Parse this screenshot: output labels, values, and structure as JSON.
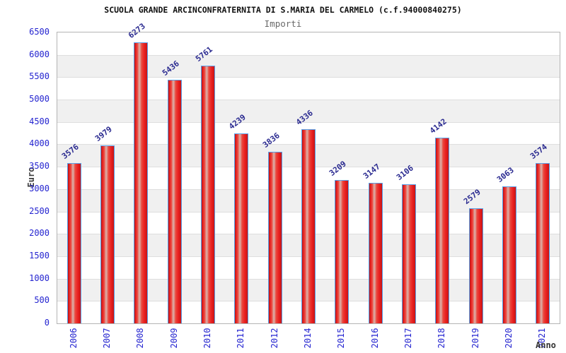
{
  "chart": {
    "title": "SCUOLA GRANDE ARCINCONFRATERNITA DI S.MARIA DEL CARMELO (c.f.94000840275)",
    "subtitle": "Importi",
    "ylabel": "Euro",
    "xlabel": "Anno"
  },
  "chart_data": {
    "type": "bar",
    "title": "SCUOLA GRANDE ARCINCONFRATERNITA DI S.MARIA DEL CARMELO (c.f.94000840275)",
    "subtitle": "Importi",
    "xlabel": "Anno",
    "ylabel": "Euro",
    "categories": [
      "2006",
      "2007",
      "2008",
      "2009",
      "2010",
      "2011",
      "2012",
      "2014",
      "2015",
      "2016",
      "2017",
      "2018",
      "2019",
      "2020",
      "2021"
    ],
    "values": [
      3576,
      3979,
      6273,
      5436,
      5761,
      4239,
      3836,
      4336,
      3209,
      3147,
      3106,
      4142,
      2579,
      3063,
      3574
    ],
    "ylim": [
      0,
      6500
    ],
    "ytick_step": 500,
    "grid": true,
    "legend": false,
    "colors": {
      "bar_fill": "#ea1f1f",
      "bar_highlight": "#dda49c",
      "bar_border": "#58a0e8",
      "value_label": "#2a2a90",
      "axis_text": "#2424d0",
      "title_text": "#111111",
      "subtitle_text": "#6a6a6a",
      "band_alt": "#f0f0f0",
      "gridline": "#dedede",
      "plot_border": "#b4b4b4"
    }
  }
}
